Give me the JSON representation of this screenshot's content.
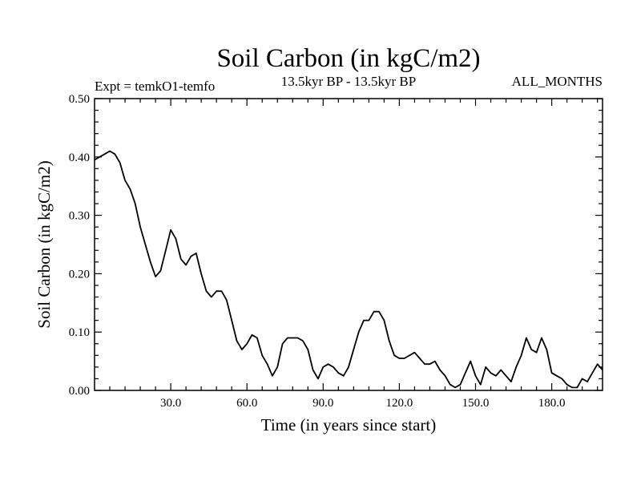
{
  "chart_data": {
    "type": "line",
    "title": "Soil Carbon (in kgC/m2)",
    "subtitle_left": "Expt = temkO1-temfo",
    "subtitle_center": "13.5kyr BP - 13.5kyr BP",
    "subtitle_right": "ALL_MONTHS",
    "xlabel": "Time (in years since start)",
    "ylabel": "Soil Carbon (in kgC/m2)",
    "xlim": [
      0,
      200
    ],
    "ylim": [
      0,
      0.5
    ],
    "x_ticks": [
      {
        "value": 30,
        "label": "30.0"
      },
      {
        "value": 60,
        "label": "60.0"
      },
      {
        "value": 90,
        "label": "90.0"
      },
      {
        "value": 120,
        "label": "120.0"
      },
      {
        "value": 150,
        "label": "150.0"
      },
      {
        "value": 180,
        "label": "180.0"
      }
    ],
    "y_ticks": [
      {
        "value": 0.0,
        "label": "0.00"
      },
      {
        "value": 0.1,
        "label": "0.10"
      },
      {
        "value": 0.2,
        "label": "0.20"
      },
      {
        "value": 0.3,
        "label": "0.30"
      },
      {
        "value": 0.4,
        "label": "0.40"
      },
      {
        "value": 0.5,
        "label": "0.50"
      }
    ],
    "grid": false,
    "series": [
      {
        "name": "Soil Carbon",
        "color": "#000000",
        "x": [
          0,
          2,
          4,
          6,
          8,
          10,
          12,
          14,
          16,
          18,
          20,
          22,
          24,
          26,
          28,
          30,
          32,
          34,
          36,
          38,
          40,
          42,
          44,
          46,
          48,
          50,
          52,
          54,
          56,
          58,
          60,
          62,
          64,
          66,
          68,
          70,
          72,
          74,
          76,
          78,
          80,
          82,
          84,
          86,
          88,
          90,
          92,
          94,
          96,
          98,
          100,
          102,
          104,
          106,
          108,
          110,
          112,
          114,
          116,
          118,
          120,
          122,
          124,
          126,
          128,
          130,
          132,
          134,
          136,
          138,
          140,
          142,
          144,
          146,
          148,
          150,
          152,
          154,
          156,
          158,
          160,
          162,
          164,
          166,
          168,
          170,
          172,
          174,
          176,
          178,
          180,
          182,
          184,
          186,
          188,
          190,
          192,
          194,
          196,
          198,
          200
        ],
        "values": [
          0.395,
          0.4,
          0.405,
          0.41,
          0.405,
          0.39,
          0.36,
          0.345,
          0.32,
          0.28,
          0.25,
          0.22,
          0.195,
          0.205,
          0.24,
          0.275,
          0.26,
          0.225,
          0.215,
          0.23,
          0.235,
          0.2,
          0.17,
          0.16,
          0.17,
          0.17,
          0.155,
          0.12,
          0.085,
          0.07,
          0.08,
          0.095,
          0.09,
          0.06,
          0.045,
          0.025,
          0.04,
          0.08,
          0.09,
          0.09,
          0.09,
          0.085,
          0.07,
          0.035,
          0.02,
          0.04,
          0.045,
          0.04,
          0.03,
          0.025,
          0.04,
          0.07,
          0.1,
          0.12,
          0.12,
          0.135,
          0.135,
          0.12,
          0.085,
          0.06,
          0.055,
          0.055,
          0.06,
          0.065,
          0.055,
          0.045,
          0.045,
          0.05,
          0.035,
          0.025,
          0.01,
          0.005,
          0.01,
          0.03,
          0.05,
          0.025,
          0.01,
          0.04,
          0.03,
          0.025,
          0.035,
          0.025,
          0.015,
          0.04,
          0.06,
          0.09,
          0.07,
          0.065,
          0.09,
          0.07,
          0.03,
          0.025,
          0.02,
          0.01,
          0.005,
          0.005,
          0.02,
          0.015,
          0.03,
          0.045,
          0.035
        ]
      }
    ]
  }
}
